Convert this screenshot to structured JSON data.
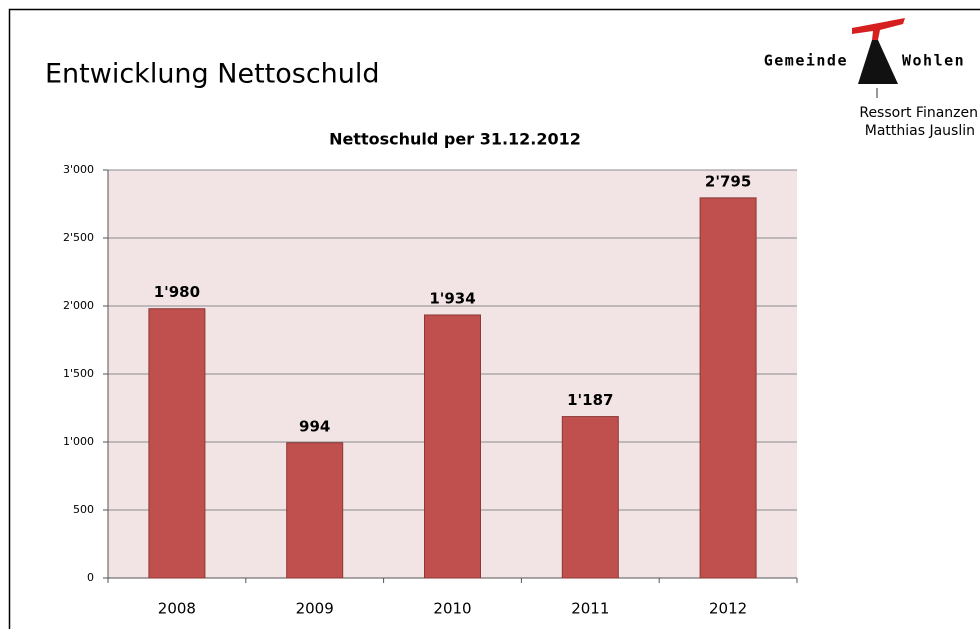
{
  "header": {
    "title": "Entwicklung Nettoschuld",
    "logo_left": "Gemeinde",
    "logo_right": "Wohlen",
    "department": "Ressort Finanzen",
    "person": "Matthias Jauslin"
  },
  "chart_data": {
    "type": "bar",
    "title": "Nettoschuld per 31.12.2012",
    "categories": [
      "2008",
      "2009",
      "2010",
      "2011",
      "2012"
    ],
    "values": [
      1980,
      994,
      1934,
      1187,
      2795
    ],
    "value_labels": [
      "1'980",
      "994",
      "1'934",
      "1'187",
      "2'795"
    ],
    "color": "#c0504d",
    "ylim": [
      0,
      3000
    ],
    "yticks": [
      0,
      500,
      {
        "value": 1000,
        "label": "1'000"
      },
      {
        "value": 1500,
        "label": "1'500"
      },
      {
        "value": 2000,
        "label": "2'000"
      },
      {
        "value": 2500,
        "label": "2'500"
      },
      {
        "value": 3000,
        "label": "3'000"
      }
    ],
    "grid": true
  }
}
